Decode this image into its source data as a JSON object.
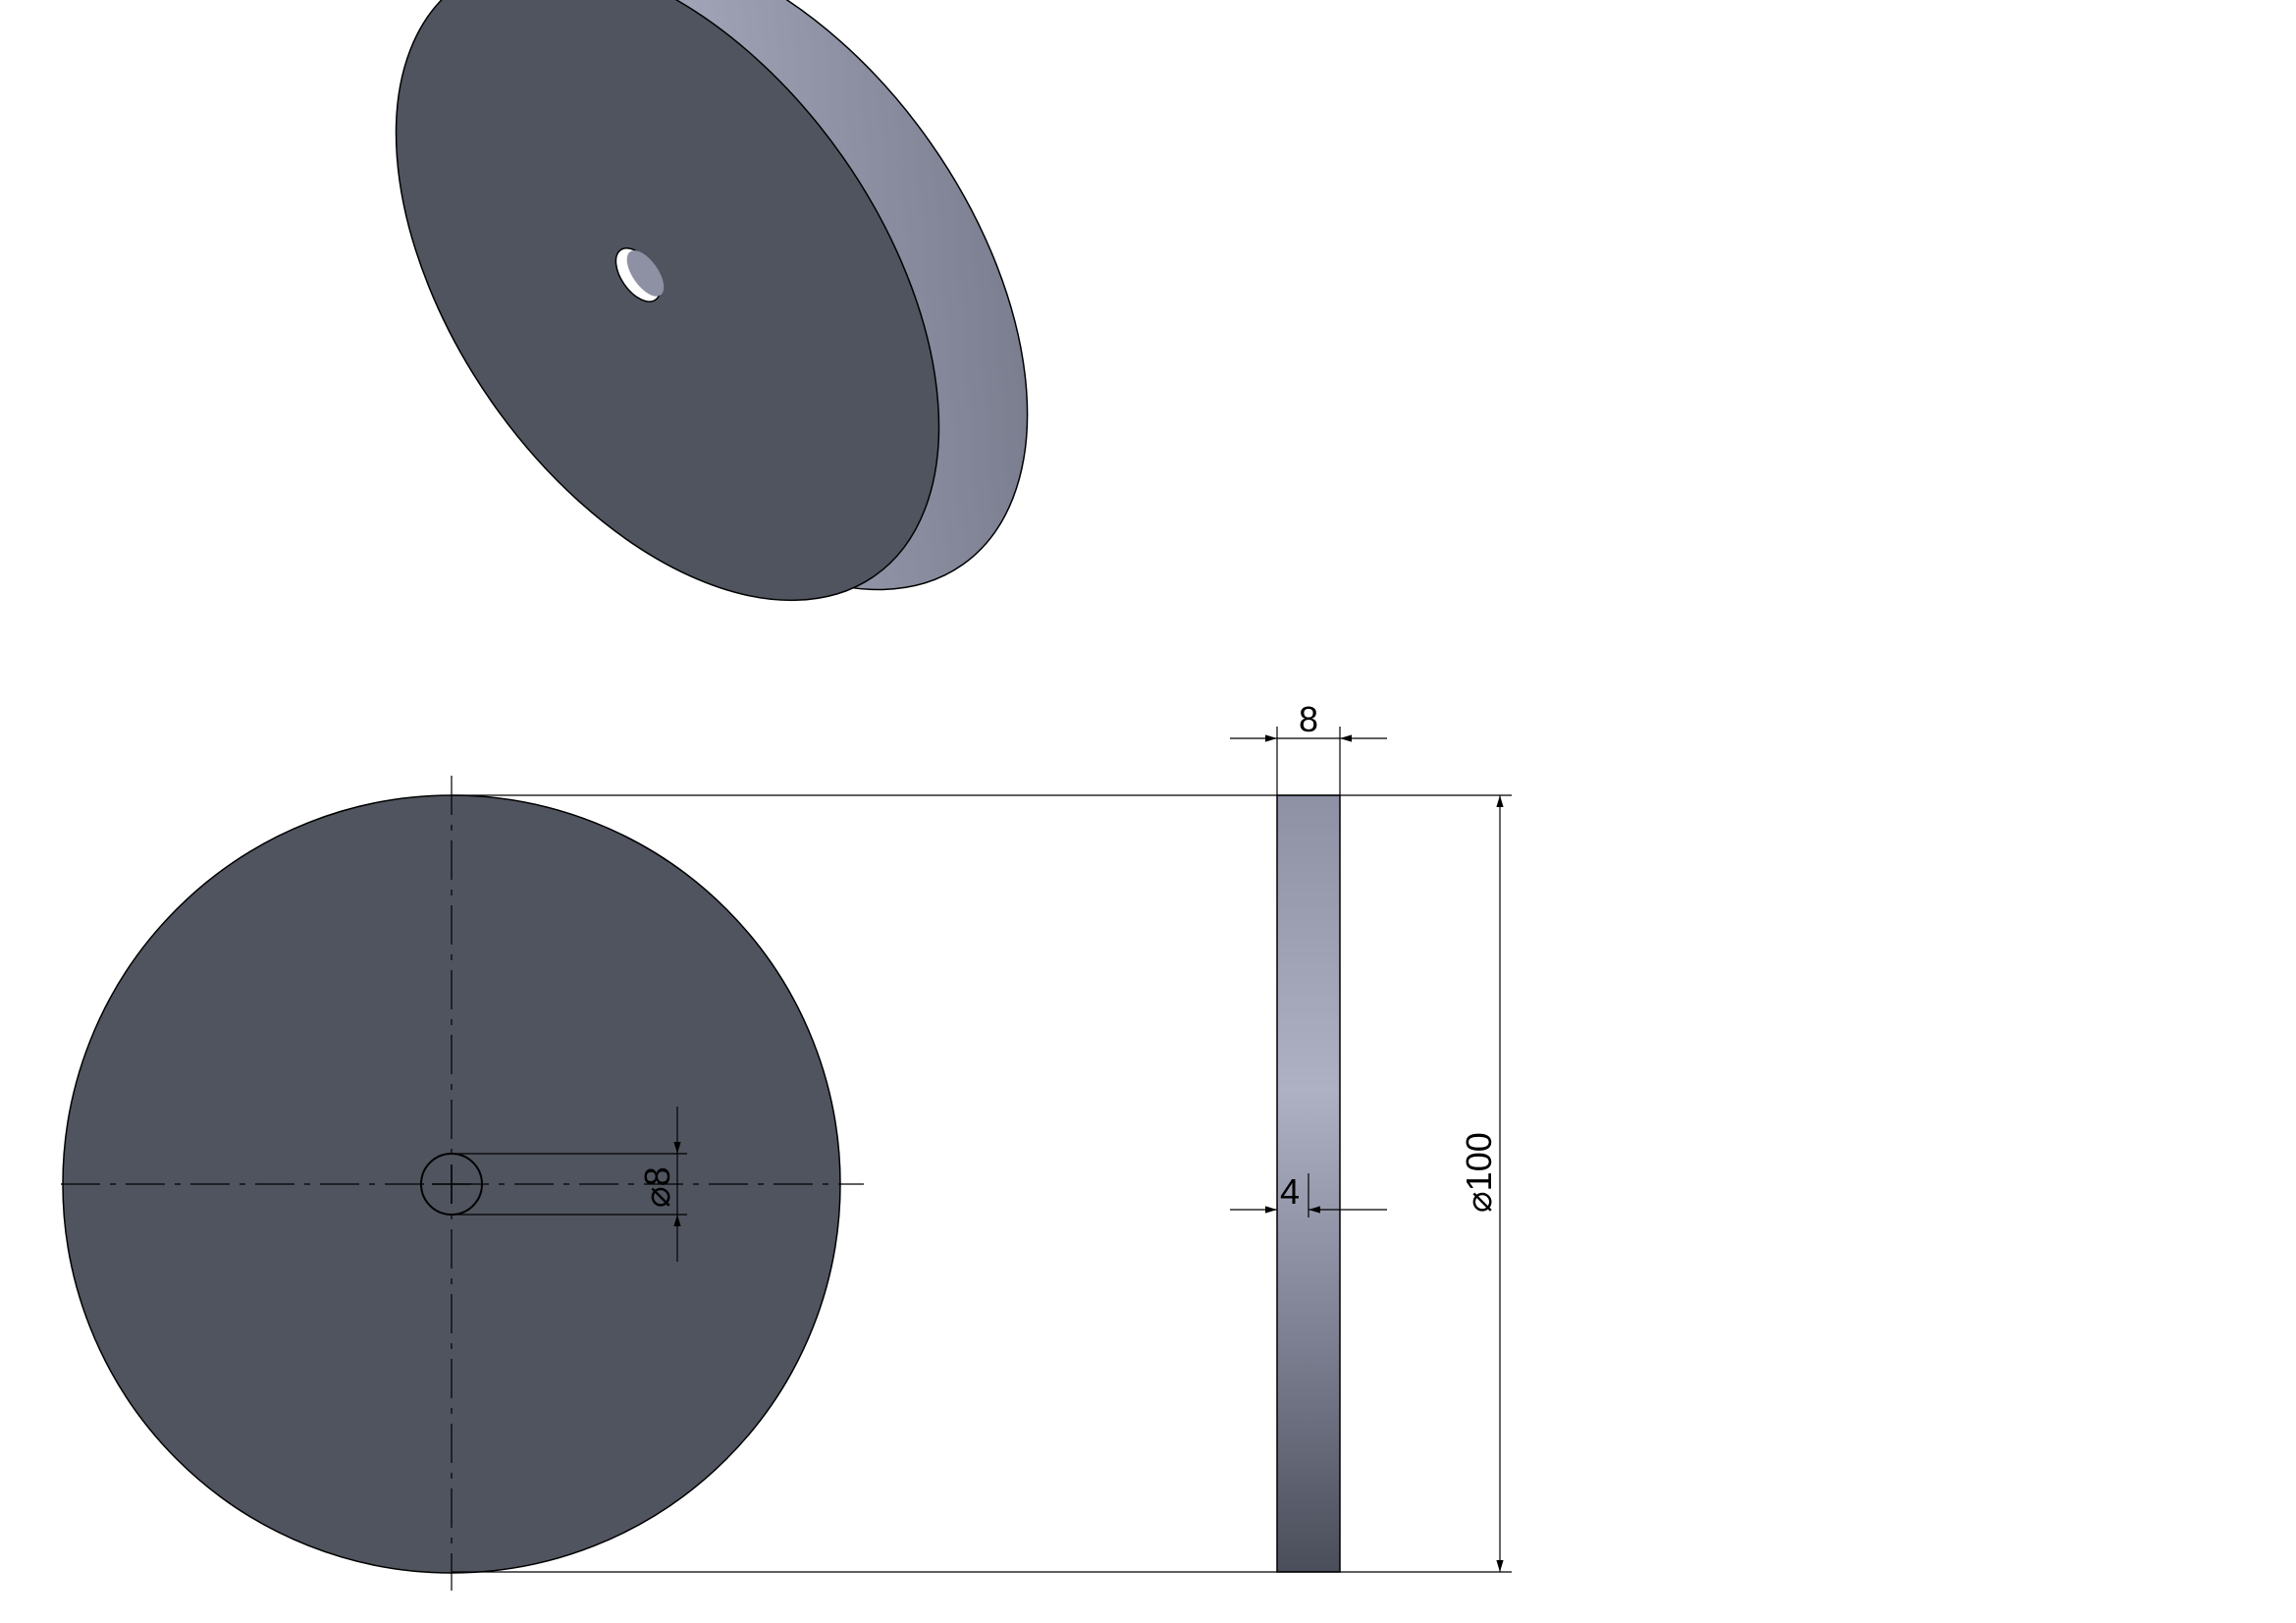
{
  "drawing": {
    "dimensions": {
      "thickness": "8",
      "diameter_symbol": "⌀",
      "diameter_value": "100",
      "hole_symbol": "⌀",
      "hole_value": "8",
      "half_thickness": "4"
    },
    "colors": {
      "face": "#50545f",
      "rim_dark": "#4a4e5a",
      "rim_light": "#aeb1c4",
      "line": "#000000",
      "background": "#ffffff"
    }
  }
}
